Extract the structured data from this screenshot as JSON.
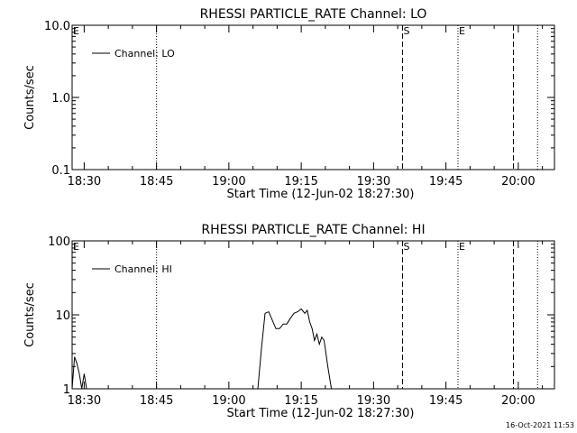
{
  "timestamp": "16-Oct-2021 11:53",
  "chart_data": [
    {
      "type": "line",
      "title": "RHESSI PARTICLE_RATE Channel: LO",
      "xlabel": "Start Time (12-Jun-02 18:27:30)",
      "ylabel": "Counts/sec",
      "y_scale": "log",
      "ylim": [
        0.1,
        10.0
      ],
      "y_ticks": [
        "0.1",
        "1.0",
        "10.0"
      ],
      "y_tick_values": [
        0.1,
        1.0,
        10.0
      ],
      "xlim": [
        "18:27:30",
        "20:07:30"
      ],
      "x_ticks": [
        "18:30",
        "18:45",
        "19:00",
        "19:15",
        "19:30",
        "19:45",
        "20:00"
      ],
      "x_tick_values": [
        "18:30",
        "18:45",
        "19:00",
        "19:15",
        "19:30",
        "19:45",
        "20:00"
      ],
      "legend": {
        "placement": "top-left",
        "entries": [
          "Channel: LO"
        ]
      },
      "markers": [
        {
          "label": "E",
          "x": "18:27:30",
          "style": "none"
        },
        {
          "label": "",
          "x": "18:45:00",
          "style": "dotted"
        },
        {
          "label": "S",
          "x": "19:36:00",
          "style": "dashed"
        },
        {
          "label": "E",
          "x": "19:47:30",
          "style": "dotted"
        },
        {
          "label": "",
          "x": "19:59:00",
          "style": "dashed"
        },
        {
          "label": "",
          "x": "20:04:00",
          "style": "dotted"
        }
      ],
      "series": [
        {
          "name": "Channel: LO",
          "points": []
        }
      ]
    },
    {
      "type": "line",
      "title": "RHESSI PARTICLE_RATE Channel: HI",
      "xlabel": "Start Time (12-Jun-02 18:27:30)",
      "ylabel": "Counts/sec",
      "y_scale": "log",
      "ylim": [
        1,
        100
      ],
      "y_ticks": [
        "1",
        "10",
        "100"
      ],
      "y_tick_values": [
        1,
        10,
        100
      ],
      "xlim": [
        "18:27:30",
        "20:07:30"
      ],
      "x_ticks": [
        "18:30",
        "18:45",
        "19:00",
        "19:15",
        "19:30",
        "19:45",
        "20:00"
      ],
      "x_tick_values": [
        "18:30",
        "18:45",
        "19:00",
        "19:15",
        "19:30",
        "19:45",
        "20:00"
      ],
      "legend": {
        "placement": "top-left",
        "entries": [
          "Channel: HI"
        ]
      },
      "markers": [
        {
          "label": "E",
          "x": "18:27:30",
          "style": "none"
        },
        {
          "label": "",
          "x": "18:45:00",
          "style": "dotted"
        },
        {
          "label": "S",
          "x": "19:36:00",
          "style": "dashed"
        },
        {
          "label": "E",
          "x": "19:47:30",
          "style": "dotted"
        },
        {
          "label": "",
          "x": "19:59:00",
          "style": "dashed"
        },
        {
          "label": "",
          "x": "20:04:00",
          "style": "dotted"
        }
      ],
      "series": [
        {
          "name": "Channel: HI",
          "segments": [
            [
              [
                "18:27:30",
                1.0
              ],
              [
                "18:28:00",
                2.7
              ],
              [
                "18:28:30",
                2.2
              ],
              [
                "18:29:00",
                1.6
              ],
              [
                "18:29:30",
                1.0
              ],
              [
                "18:30:00",
                1.6
              ],
              [
                "18:30:30",
                1.0
              ]
            ],
            [
              [
                "19:06:00",
                1.0
              ],
              [
                "19:06:45",
                3.5
              ],
              [
                "19:07:30",
                10.5
              ],
              [
                "19:08:15",
                11.0
              ],
              [
                "19:09:00",
                8.5
              ],
              [
                "19:09:45",
                6.5
              ],
              [
                "19:10:30",
                6.5
              ],
              [
                "19:11:15",
                7.5
              ],
              [
                "19:12:00",
                7.5
              ],
              [
                "19:12:45",
                9.0
              ],
              [
                "19:13:30",
                10.5
              ],
              [
                "19:14:15",
                11.0
              ],
              [
                "19:15:00",
                12.0
              ],
              [
                "19:15:45",
                10.5
              ],
              [
                "19:16:15",
                11.5
              ],
              [
                "19:16:45",
                8.0
              ],
              [
                "19:17:15",
                6.5
              ],
              [
                "19:17:45",
                4.5
              ],
              [
                "19:18:15",
                5.5
              ],
              [
                "19:18:45",
                4.0
              ],
              [
                "19:19:15",
                5.0
              ],
              [
                "19:19:45",
                4.5
              ],
              [
                "19:20:30",
                2.0
              ],
              [
                "19:21:15",
                1.0
              ]
            ]
          ]
        }
      ]
    }
  ]
}
